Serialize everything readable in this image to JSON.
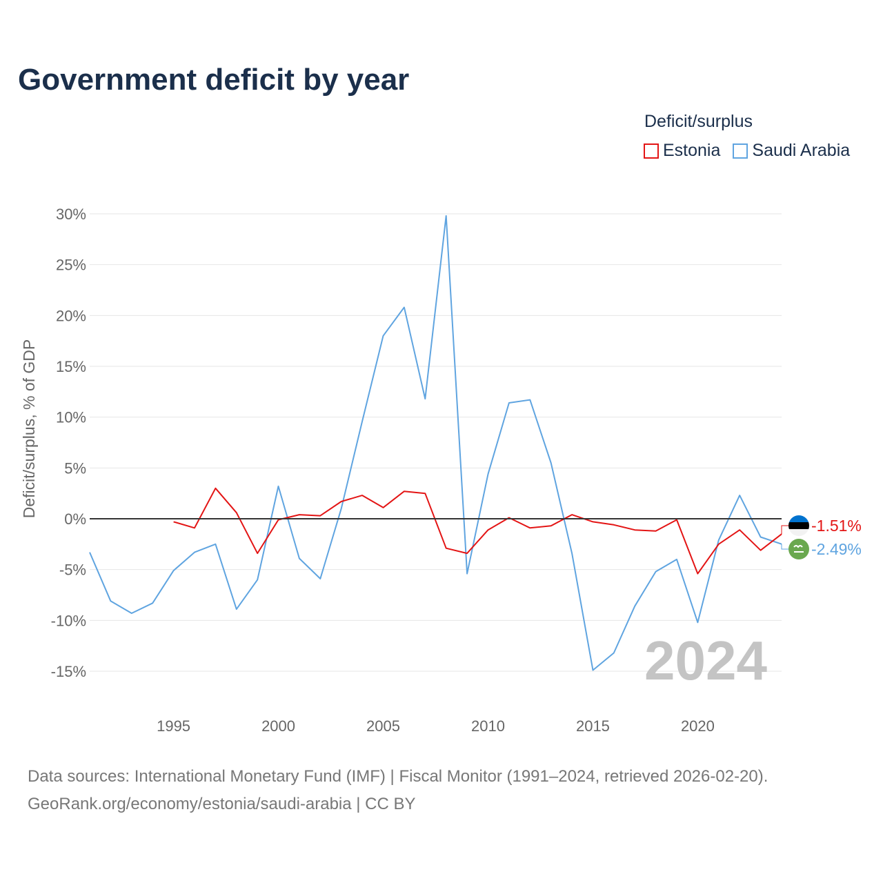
{
  "title": "Government deficit by year",
  "legend": {
    "title": "Deficit/surplus",
    "items": [
      {
        "label": "Estonia",
        "color": "#e31414"
      },
      {
        "label": "Saudi Arabia",
        "color": "#5fa4e0"
      }
    ]
  },
  "source": {
    "line1": "Data sources: International Monetary Fund (IMF) | Fiscal Monitor (1991–2024, retrieved 2026-02-20).",
    "line2": "GeoRank.org/economy/estonia/saudi-arabia | CC BY"
  },
  "chart_data": {
    "type": "line",
    "title": "Government deficit by year",
    "xlabel": "",
    "ylabel": "Deficit/surplus, % of GDP",
    "xlim": [
      1991,
      2024
    ],
    "ylim": [
      -15,
      30
    ],
    "yticks": [
      30,
      25,
      20,
      15,
      10,
      5,
      0,
      -5,
      -10,
      -15
    ],
    "ytick_labels": [
      "30%",
      "25%",
      "20%",
      "15%",
      "10%",
      "5%",
      "0%",
      "-5%",
      "-10%",
      "-15%"
    ],
    "xticks": [
      1995,
      2000,
      2005,
      2010,
      2015,
      2020
    ],
    "xtick_labels": [
      "1995",
      "2000",
      "2005",
      "2010",
      "2015",
      "2020"
    ],
    "grid": true,
    "legend_position": "top-right",
    "watermark_year": "2024",
    "series": [
      {
        "name": "Estonia",
        "color": "#e31414",
        "end_label": "-1.51%",
        "x": [
          1995,
          1996,
          1997,
          1998,
          1999,
          2000,
          2001,
          2002,
          2003,
          2004,
          2005,
          2006,
          2007,
          2008,
          2009,
          2010,
          2011,
          2012,
          2013,
          2014,
          2015,
          2016,
          2017,
          2018,
          2019,
          2020,
          2021,
          2022,
          2023,
          2024
        ],
        "values": [
          -0.3,
          -0.9,
          3.0,
          0.6,
          -3.4,
          -0.1,
          0.4,
          0.3,
          1.7,
          2.3,
          1.1,
          2.7,
          2.5,
          -2.9,
          -3.4,
          -1.1,
          0.1,
          -0.9,
          -0.7,
          0.4,
          -0.3,
          -0.6,
          -1.1,
          -1.2,
          -0.1,
          -5.4,
          -2.5,
          -1.1,
          -3.1,
          -1.51
        ]
      },
      {
        "name": "Saudi Arabia",
        "color": "#5fa4e0",
        "end_label": "-2.49%",
        "x": [
          1991,
          1992,
          1993,
          1994,
          1995,
          1996,
          1997,
          1998,
          1999,
          2000,
          2001,
          2002,
          2003,
          2004,
          2005,
          2006,
          2007,
          2008,
          2009,
          2010,
          2011,
          2012,
          2013,
          2014,
          2015,
          2016,
          2017,
          2018,
          2019,
          2020,
          2021,
          2022,
          2023,
          2024
        ],
        "values": [
          -3.3,
          -8.1,
          -9.3,
          -8.3,
          -5.1,
          -3.3,
          -2.5,
          -8.9,
          -6.0,
          3.2,
          -3.9,
          -5.9,
          1.0,
          9.6,
          18.0,
          20.8,
          11.8,
          29.8,
          -5.4,
          4.4,
          11.4,
          11.7,
          5.5,
          -3.4,
          -14.9,
          -13.2,
          -8.6,
          -5.2,
          -4.0,
          -10.2,
          -2.1,
          2.3,
          -1.8,
          -2.49
        ]
      }
    ]
  }
}
